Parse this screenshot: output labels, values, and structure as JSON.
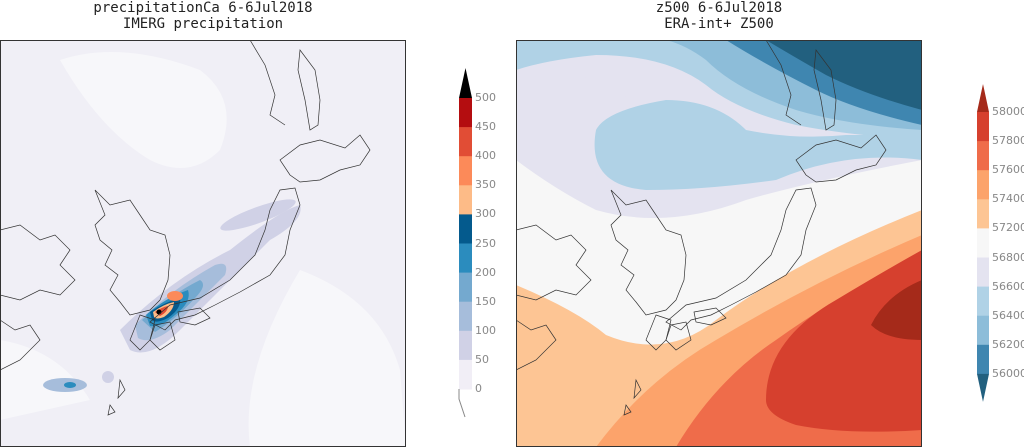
{
  "left_panel": {
    "title": "precipitationCa 6-6Jul2018",
    "subtitle": "IMERG precipitation",
    "colorbar": {
      "labels": [
        "500",
        "450",
        "400",
        "350",
        "300",
        "250",
        "200",
        "150",
        "100",
        "50",
        "0"
      ],
      "colors": [
        "#b40d10",
        "#e14d35",
        "#fc8a59",
        "#fdbb87",
        "#045a8d",
        "#2b8cbe",
        "#74a9cf",
        "#a6bddb",
        "#d0d1e6",
        "#f1eef6"
      ],
      "over_color": "#000000"
    }
  },
  "right_panel": {
    "title": "z500 6-6Jul2018",
    "subtitle": "ERA-int+ Z500",
    "colorbar": {
      "labels": [
        "58000",
        "57800",
        "57600",
        "57400",
        "57200",
        "56800",
        "56600",
        "56400",
        "56200",
        "56000"
      ],
      "colors": [
        "#d6402e",
        "#ef6c4a",
        "#fca36b",
        "#fdc594",
        "#f7f7f7",
        "#e4e3f0",
        "#b0d2e6",
        "#8dbdd9",
        "#3f86b0"
      ],
      "over_color": "#a52a1a",
      "under_color": "#22607f"
    }
  }
}
